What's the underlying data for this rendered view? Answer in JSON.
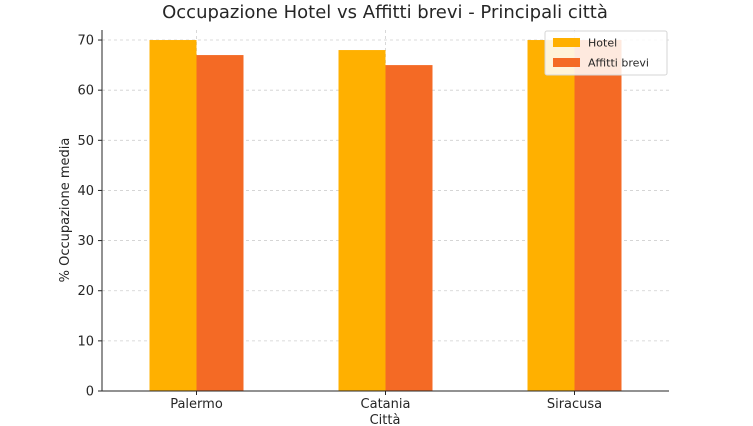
{
  "chart_data": {
    "type": "bar",
    "title": "Occupazione Hotel vs Affitti brevi - Principali città",
    "xlabel": "Città",
    "ylabel": "% Occupazione media",
    "categories": [
      "Palermo",
      "Catania",
      "Siracusa"
    ],
    "series": [
      {
        "name": "Hotel",
        "values": [
          70,
          68,
          70
        ],
        "color": "#FFB000"
      },
      {
        "name": "Affitti brevi",
        "values": [
          67,
          65,
          70
        ],
        "color": "#F46A25"
      }
    ],
    "ylim": [
      0,
      72
    ],
    "yticks": [
      0,
      10,
      20,
      30,
      40,
      50,
      60,
      70
    ],
    "grid": true,
    "legend_position": "top-right"
  }
}
